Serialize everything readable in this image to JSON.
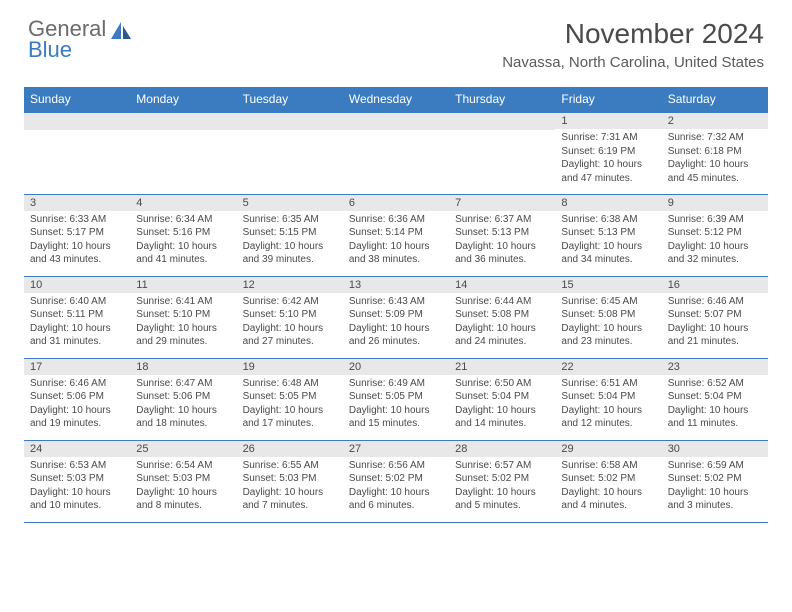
{
  "brand": {
    "line1": "General",
    "line2": "Blue"
  },
  "title": "November 2024",
  "location": "Navassa, North Carolina, United States",
  "colors": {
    "header_bg": "#3b7bbf",
    "header_text": "#ffffff",
    "daynum_bg": "#e8e8e8",
    "text": "#4a4a4a",
    "page_bg": "#ffffff",
    "border": "#3b7bbf"
  },
  "weekdays": [
    "Sunday",
    "Monday",
    "Tuesday",
    "Wednesday",
    "Thursday",
    "Friday",
    "Saturday"
  ],
  "first_weekday_index": 5,
  "days": [
    {
      "n": 1,
      "sunrise": "7:31 AM",
      "sunset": "6:19 PM",
      "dlh": 10,
      "dlm": 47
    },
    {
      "n": 2,
      "sunrise": "7:32 AM",
      "sunset": "6:18 PM",
      "dlh": 10,
      "dlm": 45
    },
    {
      "n": 3,
      "sunrise": "6:33 AM",
      "sunset": "5:17 PM",
      "dlh": 10,
      "dlm": 43
    },
    {
      "n": 4,
      "sunrise": "6:34 AM",
      "sunset": "5:16 PM",
      "dlh": 10,
      "dlm": 41
    },
    {
      "n": 5,
      "sunrise": "6:35 AM",
      "sunset": "5:15 PM",
      "dlh": 10,
      "dlm": 39
    },
    {
      "n": 6,
      "sunrise": "6:36 AM",
      "sunset": "5:14 PM",
      "dlh": 10,
      "dlm": 38
    },
    {
      "n": 7,
      "sunrise": "6:37 AM",
      "sunset": "5:13 PM",
      "dlh": 10,
      "dlm": 36
    },
    {
      "n": 8,
      "sunrise": "6:38 AM",
      "sunset": "5:13 PM",
      "dlh": 10,
      "dlm": 34
    },
    {
      "n": 9,
      "sunrise": "6:39 AM",
      "sunset": "5:12 PM",
      "dlh": 10,
      "dlm": 32
    },
    {
      "n": 10,
      "sunrise": "6:40 AM",
      "sunset": "5:11 PM",
      "dlh": 10,
      "dlm": 31
    },
    {
      "n": 11,
      "sunrise": "6:41 AM",
      "sunset": "5:10 PM",
      "dlh": 10,
      "dlm": 29
    },
    {
      "n": 12,
      "sunrise": "6:42 AM",
      "sunset": "5:10 PM",
      "dlh": 10,
      "dlm": 27
    },
    {
      "n": 13,
      "sunrise": "6:43 AM",
      "sunset": "5:09 PM",
      "dlh": 10,
      "dlm": 26
    },
    {
      "n": 14,
      "sunrise": "6:44 AM",
      "sunset": "5:08 PM",
      "dlh": 10,
      "dlm": 24
    },
    {
      "n": 15,
      "sunrise": "6:45 AM",
      "sunset": "5:08 PM",
      "dlh": 10,
      "dlm": 23
    },
    {
      "n": 16,
      "sunrise": "6:46 AM",
      "sunset": "5:07 PM",
      "dlh": 10,
      "dlm": 21
    },
    {
      "n": 17,
      "sunrise": "6:46 AM",
      "sunset": "5:06 PM",
      "dlh": 10,
      "dlm": 19
    },
    {
      "n": 18,
      "sunrise": "6:47 AM",
      "sunset": "5:06 PM",
      "dlh": 10,
      "dlm": 18
    },
    {
      "n": 19,
      "sunrise": "6:48 AM",
      "sunset": "5:05 PM",
      "dlh": 10,
      "dlm": 17
    },
    {
      "n": 20,
      "sunrise": "6:49 AM",
      "sunset": "5:05 PM",
      "dlh": 10,
      "dlm": 15
    },
    {
      "n": 21,
      "sunrise": "6:50 AM",
      "sunset": "5:04 PM",
      "dlh": 10,
      "dlm": 14
    },
    {
      "n": 22,
      "sunrise": "6:51 AM",
      "sunset": "5:04 PM",
      "dlh": 10,
      "dlm": 12
    },
    {
      "n": 23,
      "sunrise": "6:52 AM",
      "sunset": "5:04 PM",
      "dlh": 10,
      "dlm": 11
    },
    {
      "n": 24,
      "sunrise": "6:53 AM",
      "sunset": "5:03 PM",
      "dlh": 10,
      "dlm": 10
    },
    {
      "n": 25,
      "sunrise": "6:54 AM",
      "sunset": "5:03 PM",
      "dlh": 10,
      "dlm": 8
    },
    {
      "n": 26,
      "sunrise": "6:55 AM",
      "sunset": "5:03 PM",
      "dlh": 10,
      "dlm": 7
    },
    {
      "n": 27,
      "sunrise": "6:56 AM",
      "sunset": "5:02 PM",
      "dlh": 10,
      "dlm": 6
    },
    {
      "n": 28,
      "sunrise": "6:57 AM",
      "sunset": "5:02 PM",
      "dlh": 10,
      "dlm": 5
    },
    {
      "n": 29,
      "sunrise": "6:58 AM",
      "sunset": "5:02 PM",
      "dlh": 10,
      "dlm": 4
    },
    {
      "n": 30,
      "sunrise": "6:59 AM",
      "sunset": "5:02 PM",
      "dlh": 10,
      "dlm": 3
    }
  ]
}
